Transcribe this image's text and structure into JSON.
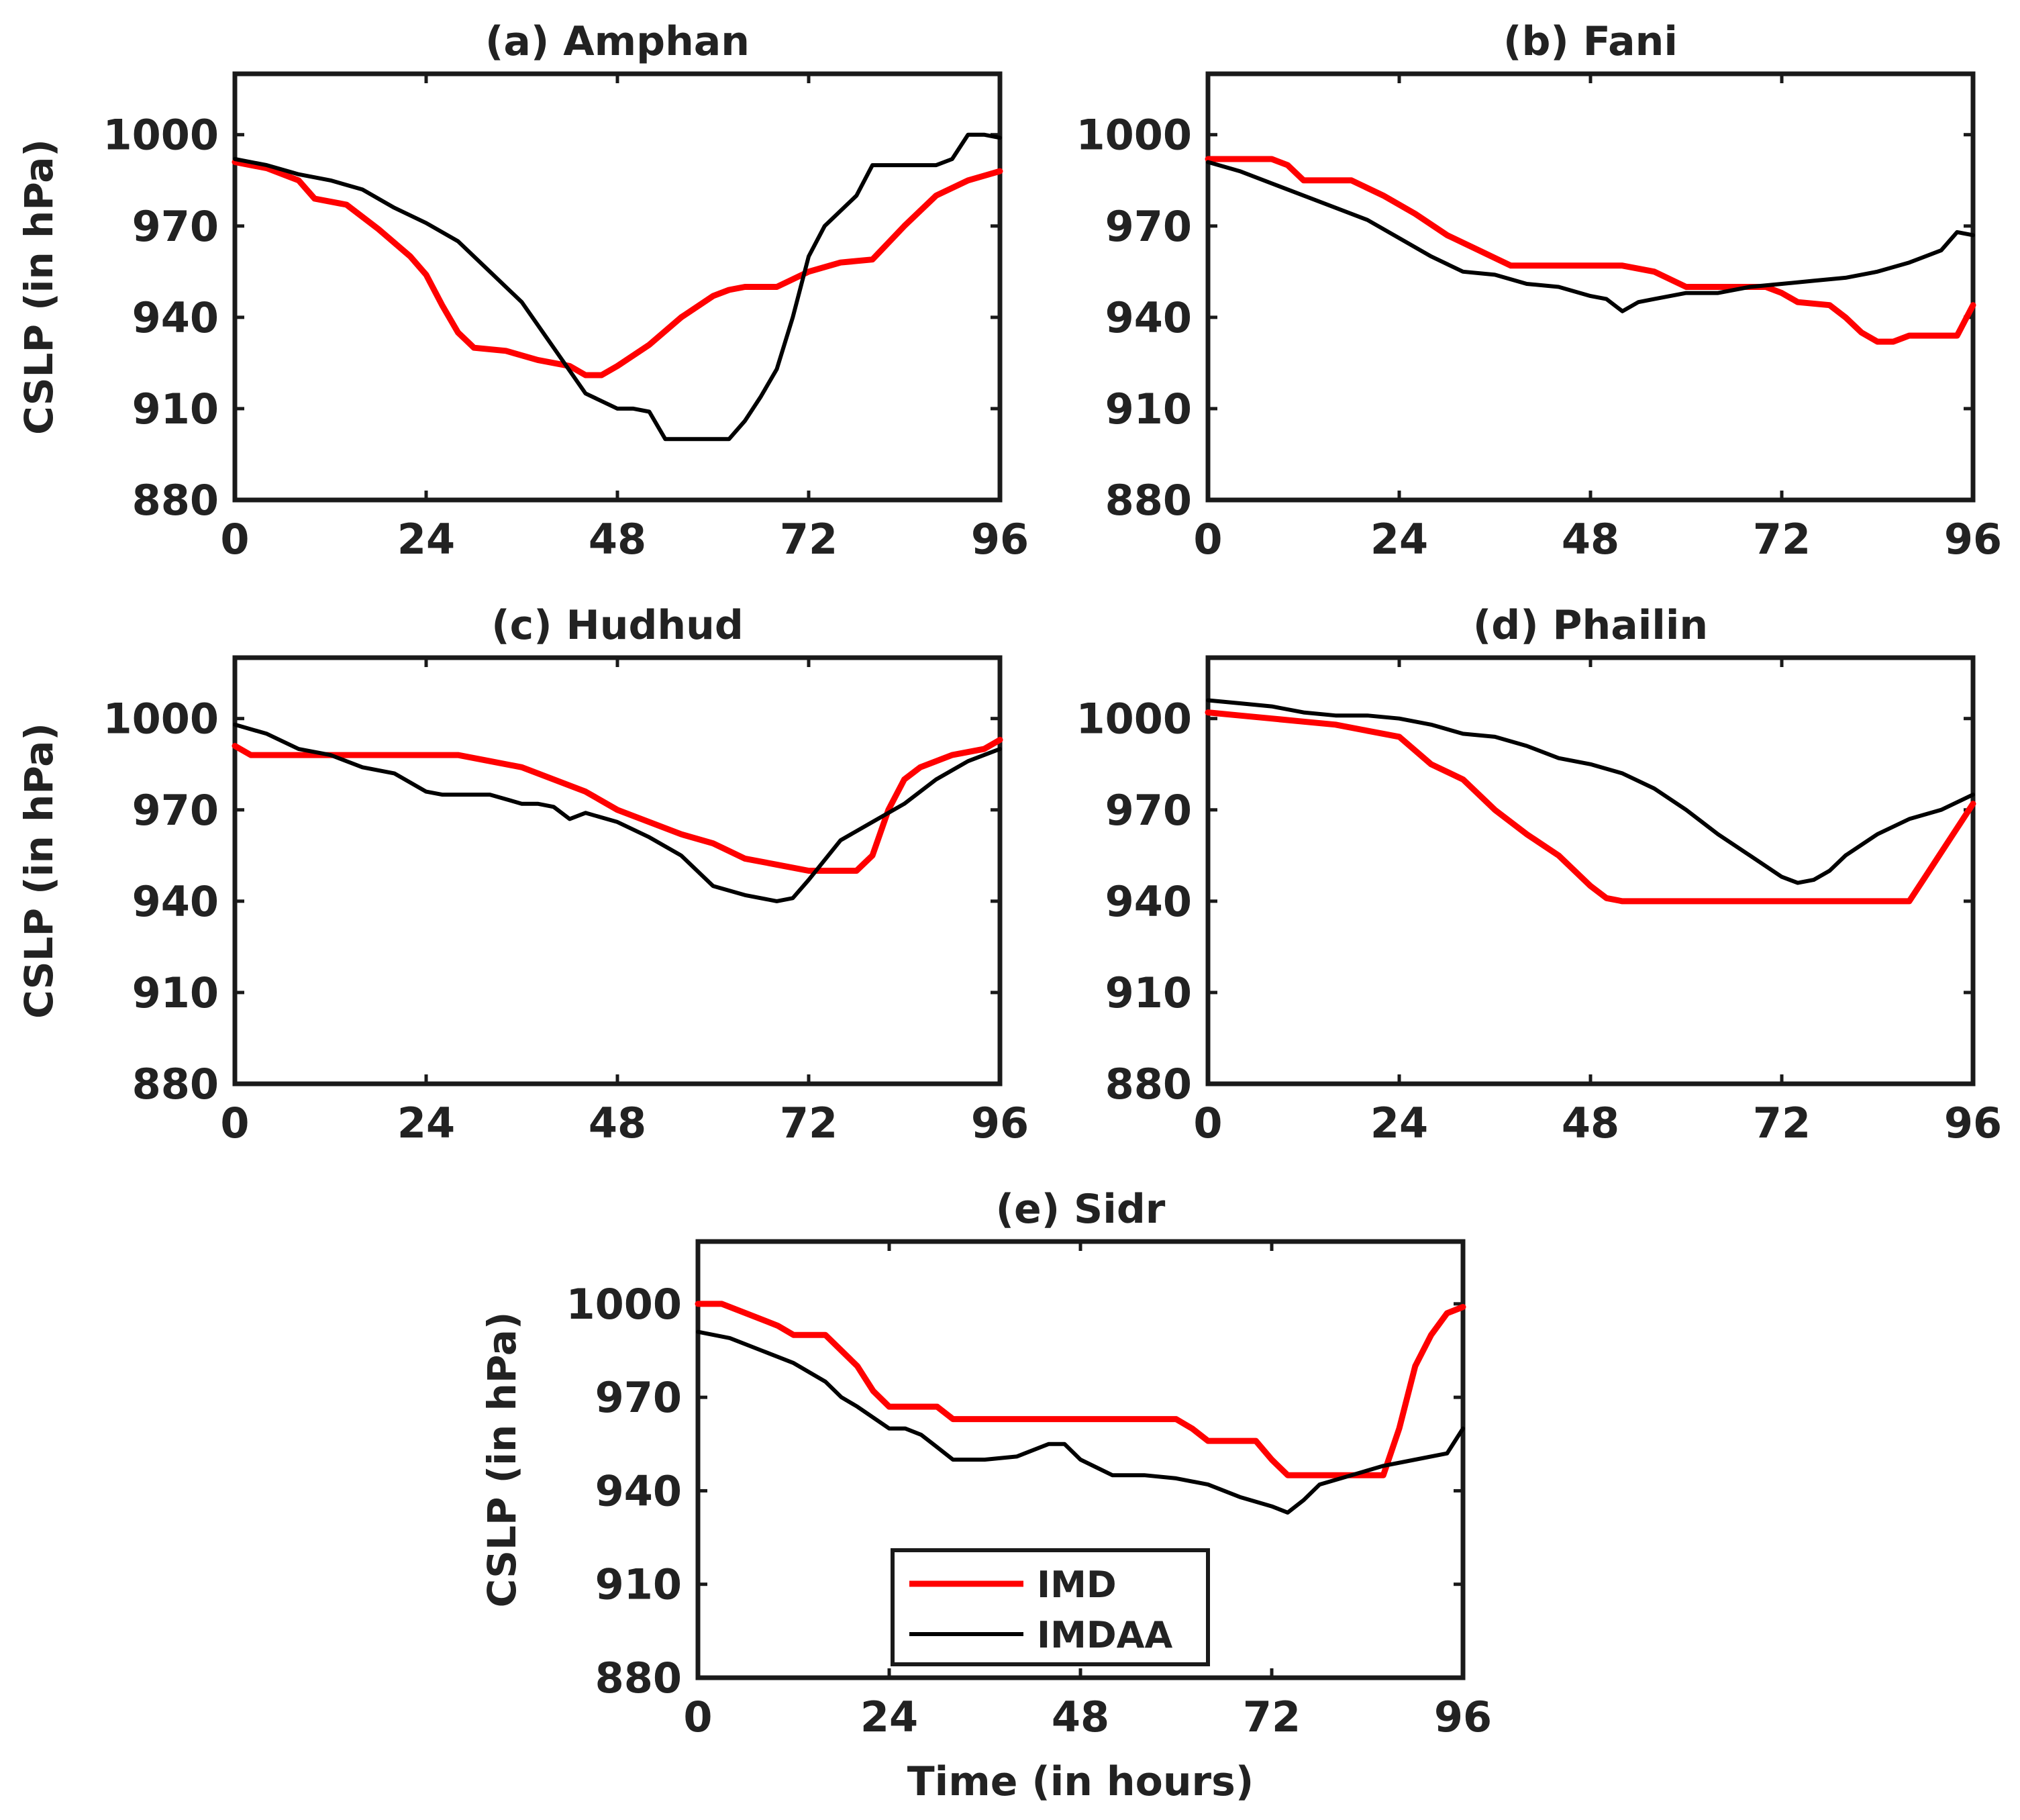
{
  "chart_data": [
    {
      "panel": "a",
      "type": "line",
      "title": "(a) Amphan",
      "xlabel": "",
      "ylabel": "CSLP (in hPa)",
      "xlim": [
        0,
        96
      ],
      "ylim": [
        880,
        1020
      ],
      "xticks": [
        0,
        24,
        48,
        72,
        96
      ],
      "yticks": [
        880,
        910,
        940,
        970,
        1000
      ],
      "grid": false,
      "series": [
        {
          "name": "IMD",
          "color": "#ff0000",
          "x": [
            0,
            4,
            8,
            10,
            14,
            18,
            22,
            24,
            26,
            28,
            30,
            34,
            38,
            42,
            44,
            46,
            48,
            52,
            56,
            60,
            62,
            64,
            68,
            72,
            76,
            80,
            84,
            88,
            92,
            96
          ],
          "y": [
            991,
            989,
            985,
            979,
            977,
            969,
            960,
            954,
            944,
            935,
            930,
            929,
            926,
            924,
            921,
            921,
            924,
            931,
            940,
            947,
            949,
            950,
            950,
            955,
            958,
            959,
            970,
            980,
            985,
            988
          ]
        },
        {
          "name": "IMDAA",
          "color": "#000000",
          "x": [
            0,
            4,
            8,
            12,
            16,
            20,
            24,
            28,
            32,
            36,
            40,
            44,
            48,
            50,
            52,
            54,
            56,
            58,
            60,
            62,
            64,
            66,
            68,
            70,
            72,
            74,
            78,
            80,
            84,
            88,
            90,
            92,
            94,
            96
          ],
          "y": [
            992,
            990,
            987,
            985,
            982,
            976,
            971,
            965,
            955,
            945,
            930,
            915,
            910,
            910,
            909,
            900,
            900,
            900,
            900,
            900,
            906,
            914,
            923,
            940,
            960,
            970,
            980,
            990,
            990,
            990,
            992,
            1000,
            1000,
            999
          ]
        }
      ]
    },
    {
      "panel": "b",
      "type": "line",
      "title": "(b) Fani",
      "xlabel": "",
      "ylabel": "",
      "xlim": [
        0,
        96
      ],
      "ylim": [
        880,
        1020
      ],
      "xticks": [
        0,
        24,
        48,
        72,
        96
      ],
      "yticks": [
        880,
        910,
        940,
        970,
        1000
      ],
      "grid": false,
      "series": [
        {
          "name": "IMD",
          "color": "#ff0000",
          "x": [
            0,
            6,
            8,
            10,
            12,
            16,
            18,
            22,
            26,
            30,
            34,
            38,
            42,
            48,
            52,
            56,
            60,
            66,
            70,
            72,
            74,
            78,
            80,
            82,
            84,
            86,
            88,
            92,
            94,
            96
          ],
          "y": [
            992,
            992,
            992,
            990,
            985,
            985,
            985,
            980,
            974,
            967,
            962,
            957,
            957,
            957,
            957,
            955,
            950,
            950,
            950,
            948,
            945,
            944,
            940,
            935,
            932,
            932,
            934,
            934,
            934,
            944
          ]
        },
        {
          "name": "IMDAA",
          "color": "#000000",
          "x": [
            0,
            4,
            8,
            12,
            16,
            20,
            24,
            28,
            32,
            36,
            40,
            44,
            48,
            50,
            52,
            54,
            56,
            60,
            64,
            68,
            72,
            76,
            80,
            84,
            88,
            92,
            94,
            96
          ],
          "y": [
            991,
            988,
            984,
            980,
            976,
            972,
            966,
            960,
            955,
            954,
            951,
            950,
            947,
            946,
            942,
            945,
            946,
            948,
            948,
            950,
            951,
            952,
            953,
            955,
            958,
            962,
            968,
            967
          ]
        }
      ]
    },
    {
      "panel": "c",
      "type": "line",
      "title": "(c) Hudhud",
      "xlabel": "",
      "ylabel": "CSLP (in hPa)",
      "xlim": [
        0,
        96
      ],
      "ylim": [
        880,
        1020
      ],
      "xticks": [
        0,
        24,
        48,
        72,
        96
      ],
      "yticks": [
        880,
        910,
        940,
        970,
        1000
      ],
      "grid": false,
      "series": [
        {
          "name": "IMD",
          "color": "#ff0000",
          "x": [
            0,
            2,
            4,
            8,
            12,
            16,
            20,
            24,
            28,
            32,
            36,
            40,
            44,
            48,
            52,
            56,
            60,
            64,
            68,
            72,
            76,
            78,
            80,
            82,
            84,
            86,
            90,
            94,
            96
          ],
          "y": [
            991,
            988,
            988,
            988,
            988,
            988,
            988,
            988,
            988,
            986,
            984,
            980,
            976,
            970,
            966,
            962,
            959,
            954,
            952,
            950,
            950,
            950,
            955,
            970,
            980,
            984,
            988,
            990,
            993
          ]
        },
        {
          "name": "IMDAA",
          "color": "#000000",
          "x": [
            0,
            4,
            8,
            12,
            16,
            20,
            24,
            26,
            28,
            32,
            36,
            38,
            40,
            42,
            44,
            48,
            52,
            56,
            60,
            64,
            68,
            70,
            72,
            76,
            80,
            84,
            88,
            92,
            96
          ],
          "y": [
            998,
            995,
            990,
            988,
            984,
            982,
            976,
            975,
            975,
            975,
            972,
            972,
            971,
            967,
            969,
            966,
            961,
            955,
            945,
            942,
            940,
            941,
            947,
            960,
            966,
            972,
            980,
            986,
            990
          ]
        }
      ]
    },
    {
      "panel": "d",
      "type": "line",
      "title": "(d) Phailin",
      "xlabel": "",
      "ylabel": "",
      "xlim": [
        0,
        96
      ],
      "ylim": [
        880,
        1020
      ],
      "xticks": [
        0,
        24,
        48,
        72,
        96
      ],
      "yticks": [
        880,
        910,
        940,
        970,
        1000
      ],
      "grid": false,
      "series": [
        {
          "name": "IMD",
          "color": "#ff0000",
          "x": [
            0,
            4,
            8,
            12,
            16,
            20,
            24,
            28,
            32,
            36,
            40,
            44,
            48,
            50,
            52,
            56,
            60,
            66,
            72,
            78,
            84,
            88,
            90,
            92,
            96
          ],
          "y": [
            1002,
            1001,
            1000,
            999,
            998,
            996,
            994,
            985,
            980,
            970,
            962,
            955,
            945,
            941,
            940,
            940,
            940,
            940,
            940,
            940,
            940,
            940,
            948,
            956,
            972
          ]
        },
        {
          "name": "IMDAA",
          "color": "#000000",
          "x": [
            0,
            4,
            8,
            12,
            16,
            20,
            24,
            28,
            32,
            36,
            40,
            44,
            48,
            52,
            56,
            60,
            64,
            68,
            72,
            74,
            76,
            78,
            80,
            84,
            88,
            92,
            96
          ],
          "y": [
            1006,
            1005,
            1004,
            1002,
            1001,
            1001,
            1000,
            998,
            995,
            994,
            991,
            987,
            985,
            982,
            977,
            970,
            962,
            955,
            948,
            946,
            947,
            950,
            955,
            962,
            967,
            970,
            975
          ]
        }
      ]
    },
    {
      "panel": "e",
      "type": "line",
      "title": "(e) Sidr",
      "xlabel": "Time (in hours)",
      "ylabel": "CSLP (in hPa)",
      "xlim": [
        0,
        96
      ],
      "ylim": [
        880,
        1020
      ],
      "xticks": [
        0,
        24,
        48,
        72,
        96
      ],
      "yticks": [
        880,
        910,
        940,
        970,
        1000
      ],
      "grid": false,
      "legend": {
        "position": "bottom-center",
        "entries": [
          "IMD",
          "IMDAA"
        ]
      },
      "series": [
        {
          "name": "IMD",
          "color": "#ff0000",
          "x": [
            0,
            3,
            6,
            10,
            12,
            16,
            20,
            22,
            24,
            28,
            30,
            32,
            36,
            40,
            44,
            48,
            52,
            56,
            60,
            62,
            64,
            68,
            70,
            72,
            74,
            78,
            82,
            84,
            86,
            88,
            90,
            92,
            94,
            96
          ],
          "y": [
            1000,
            1000,
            997,
            993,
            990,
            990,
            980,
            972,
            967,
            967,
            967,
            963,
            963,
            963,
            963,
            963,
            963,
            963,
            963,
            960,
            956,
            956,
            956,
            950,
            945,
            945,
            945,
            945,
            945,
            960,
            980,
            990,
            997,
            999
          ]
        },
        {
          "name": "IMDAA",
          "color": "#000000",
          "x": [
            0,
            4,
            8,
            12,
            16,
            18,
            20,
            24,
            26,
            28,
            30,
            32,
            36,
            40,
            44,
            46,
            48,
            52,
            56,
            60,
            64,
            68,
            72,
            74,
            76,
            78,
            82,
            86,
            90,
            94,
            96
          ],
          "y": [
            991,
            989,
            985,
            981,
            975,
            970,
            967,
            960,
            960,
            958,
            954,
            950,
            950,
            951,
            955,
            955,
            950,
            945,
            945,
            944,
            942,
            938,
            935,
            933,
            937,
            942,
            945,
            948,
            950,
            952,
            960
          ]
        }
      ]
    }
  ]
}
